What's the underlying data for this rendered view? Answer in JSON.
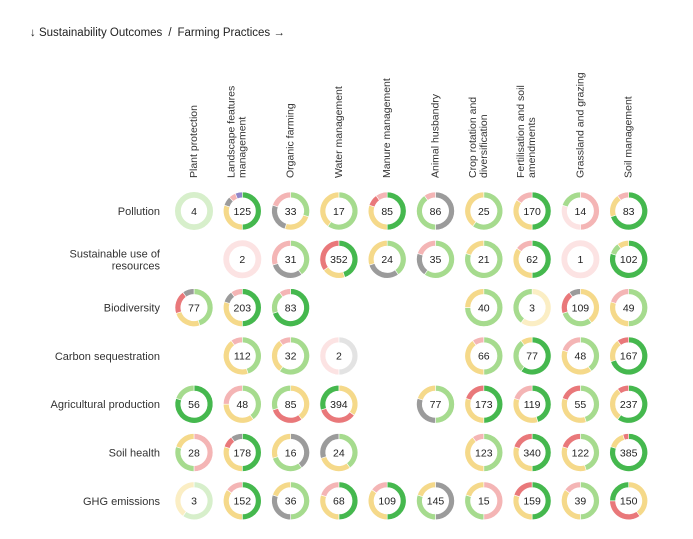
{
  "breadcrumb": {
    "outcomes_label": "↓ Sustainability Outcomes",
    "separator": "/",
    "practices_label": "Farming Practices →"
  },
  "palette": {
    "dark_green": "#45B84E",
    "light_green": "#A6DB8E",
    "yellow": "#F5D98A",
    "red": "#E9787A",
    "pink": "#F4B5B5",
    "grey": "#9B9B9B",
    "purple": "#8F86C9",
    "pale_green": "#D7EFCB",
    "pale_pink": "#FCE3E3",
    "pale_grey": "#E3E3E3",
    "pale_yellow": "#FBEEC4"
  },
  "chart_data": {
    "type": "matrix",
    "columns": [
      [
        "Plant protection"
      ],
      [
        "Landscape features",
        "management"
      ],
      [
        "Organic farming"
      ],
      [
        "Water management"
      ],
      [
        "Manure management"
      ],
      [
        "Animal husbandry"
      ],
      [
        "Crop rotation and",
        "diversification"
      ],
      [
        "Fertilisation and soil",
        "amendments"
      ],
      [
        "Grassland and grazing"
      ],
      [
        "Soil management"
      ]
    ],
    "rows": [
      [
        "Pollution"
      ],
      [
        "Sustainable use of",
        "resources"
      ],
      [
        "Biodiversity"
      ],
      [
        "Carbon sequestration"
      ],
      [
        "Agricultural production"
      ],
      [
        "Soil health"
      ],
      [
        "GHG emissions"
      ]
    ],
    "cells": [
      [
        {
          "v": 4,
          "s": [
            [
              "pale_green",
              1
            ]
          ]
        },
        {
          "v": 125,
          "s": [
            [
              "dark_green",
              0.5
            ],
            [
              "yellow",
              0.3
            ],
            [
              "grey",
              0.08
            ],
            [
              "pink",
              0.06
            ],
            [
              "purple",
              0.06
            ]
          ]
        },
        {
          "v": 33,
          "s": [
            [
              "light_green",
              0.3
            ],
            [
              "yellow",
              0.25
            ],
            [
              "grey",
              0.25
            ],
            [
              "pink",
              0.2
            ]
          ]
        },
        {
          "v": 17,
          "s": [
            [
              "light_green",
              0.6
            ],
            [
              "yellow",
              0.4
            ]
          ]
        },
        {
          "v": 85,
          "s": [
            [
              "dark_green",
              0.5
            ],
            [
              "yellow",
              0.3
            ],
            [
              "red",
              0.1
            ],
            [
              "pink",
              0.1
            ]
          ]
        },
        {
          "v": 86,
          "s": [
            [
              "grey",
              0.5
            ],
            [
              "light_green",
              0.4
            ],
            [
              "pink",
              0.1
            ]
          ]
        },
        {
          "v": 25,
          "s": [
            [
              "light_green",
              0.6
            ],
            [
              "yellow",
              0.4
            ]
          ]
        },
        {
          "v": 170,
          "s": [
            [
              "dark_green",
              0.5
            ],
            [
              "yellow",
              0.35
            ],
            [
              "pink",
              0.15
            ]
          ]
        },
        {
          "v": 14,
          "s": [
            [
              "pink",
              0.5
            ],
            [
              "pale_pink",
              0.3
            ],
            [
              "light_green",
              0.2
            ]
          ]
        },
        {
          "v": 83,
          "s": [
            [
              "dark_green",
              0.7
            ],
            [
              "yellow",
              0.2
            ],
            [
              "pink",
              0.1
            ]
          ]
        }
      ],
      [
        null,
        {
          "v": 2,
          "s": [
            [
              "pale_pink",
              1
            ]
          ]
        },
        {
          "v": 31,
          "s": [
            [
              "light_green",
              0.4
            ],
            [
              "grey",
              0.3
            ],
            [
              "pink",
              0.3
            ]
          ]
        },
        {
          "v": 352,
          "s": [
            [
              "dark_green",
              0.45
            ],
            [
              "yellow",
              0.2
            ],
            [
              "red",
              0.35
            ]
          ]
        },
        {
          "v": 24,
          "s": [
            [
              "light_green",
              0.4
            ],
            [
              "grey",
              0.3
            ],
            [
              "yellow",
              0.3
            ]
          ]
        },
        {
          "v": 35,
          "s": [
            [
              "light_green",
              0.6
            ],
            [
              "grey",
              0.2
            ],
            [
              "pink",
              0.2
            ]
          ]
        },
        {
          "v": 21,
          "s": [
            [
              "light_green",
              0.8
            ],
            [
              "yellow",
              0.2
            ]
          ]
        },
        {
          "v": 62,
          "s": [
            [
              "dark_green",
              0.5
            ],
            [
              "yellow",
              0.35
            ],
            [
              "pink",
              0.15
            ]
          ]
        },
        {
          "v": 1,
          "s": [
            [
              "pale_pink",
              1
            ]
          ]
        },
        {
          "v": 102,
          "s": [
            [
              "dark_green",
              0.8
            ],
            [
              "light_green",
              0.1
            ],
            [
              "yellow",
              0.1
            ]
          ]
        }
      ],
      [
        {
          "v": 77,
          "s": [
            [
              "light_green",
              0.45
            ],
            [
              "yellow",
              0.25
            ],
            [
              "red",
              0.2
            ],
            [
              "grey",
              0.1
            ]
          ]
        },
        {
          "v": 203,
          "s": [
            [
              "dark_green",
              0.5
            ],
            [
              "yellow",
              0.3
            ],
            [
              "grey",
              0.1
            ],
            [
              "pink",
              0.1
            ]
          ]
        },
        {
          "v": 83,
          "s": [
            [
              "dark_green",
              0.7
            ],
            [
              "light_green",
              0.2
            ],
            [
              "pink",
              0.1
            ]
          ]
        },
        null,
        null,
        null,
        {
          "v": 40,
          "s": [
            [
              "light_green",
              0.75
            ],
            [
              "yellow",
              0.25
            ]
          ]
        },
        {
          "v": 3,
          "s": [
            [
              "pale_yellow",
              0.6
            ],
            [
              "light_green",
              0.4
            ]
          ]
        },
        {
          "v": 109,
          "s": [
            [
              "yellow",
              0.4
            ],
            [
              "light_green",
              0.3
            ],
            [
              "red",
              0.2
            ],
            [
              "grey",
              0.1
            ]
          ]
        },
        {
          "v": 49,
          "s": [
            [
              "light_green",
              0.5
            ],
            [
              "yellow",
              0.3
            ],
            [
              "pink",
              0.2
            ]
          ]
        }
      ],
      [
        null,
        {
          "v": 112,
          "s": [
            [
              "light_green",
              0.45
            ],
            [
              "yellow",
              0.45
            ],
            [
              "pink",
              0.1
            ]
          ]
        },
        {
          "v": 32,
          "s": [
            [
              "light_green",
              0.6
            ],
            [
              "yellow",
              0.3
            ],
            [
              "pink",
              0.1
            ]
          ]
        },
        {
          "v": 2,
          "s": [
            [
              "pale_grey",
              0.5
            ],
            [
              "pale_pink",
              0.5
            ]
          ]
        },
        null,
        null,
        {
          "v": 66,
          "s": [
            [
              "light_green",
              0.5
            ],
            [
              "yellow",
              0.4
            ],
            [
              "pink",
              0.1
            ]
          ]
        },
        {
          "v": 77,
          "s": [
            [
              "dark_green",
              0.6
            ],
            [
              "light_green",
              0.3
            ],
            [
              "yellow",
              0.1
            ]
          ]
        },
        {
          "v": 48,
          "s": [
            [
              "light_green",
              0.4
            ],
            [
              "yellow",
              0.4
            ],
            [
              "pink",
              0.2
            ]
          ]
        },
        {
          "v": 167,
          "s": [
            [
              "dark_green",
              0.7
            ],
            [
              "yellow",
              0.2
            ],
            [
              "red",
              0.1
            ]
          ]
        }
      ],
      [
        {
          "v": 56,
          "s": [
            [
              "dark_green",
              0.8
            ],
            [
              "light_green",
              0.2
            ]
          ]
        },
        {
          "v": 48,
          "s": [
            [
              "light_green",
              0.4
            ],
            [
              "yellow",
              0.35
            ],
            [
              "pink",
              0.25
            ]
          ]
        },
        {
          "v": 85,
          "s": [
            [
              "yellow",
              0.4
            ],
            [
              "red",
              0.3
            ],
            [
              "light_green",
              0.3
            ]
          ]
        },
        {
          "v": 394,
          "s": [
            [
              "yellow",
              0.35
            ],
            [
              "red",
              0.35
            ],
            [
              "dark_green",
              0.3
            ]
          ]
        },
        null,
        {
          "v": 77,
          "s": [
            [
              "light_green",
              0.5
            ],
            [
              "grey",
              0.3
            ],
            [
              "yellow",
              0.2
            ]
          ]
        },
        {
          "v": 173,
          "s": [
            [
              "dark_green",
              0.5
            ],
            [
              "yellow",
              0.3
            ],
            [
              "red",
              0.2
            ]
          ]
        },
        {
          "v": 119,
          "s": [
            [
              "dark_green",
              0.45
            ],
            [
              "yellow",
              0.35
            ],
            [
              "pink",
              0.2
            ]
          ]
        },
        {
          "v": 55,
          "s": [
            [
              "light_green",
              0.45
            ],
            [
              "yellow",
              0.35
            ],
            [
              "red",
              0.2
            ]
          ]
        },
        {
          "v": 237,
          "s": [
            [
              "dark_green",
              0.6
            ],
            [
              "yellow",
              0.3
            ],
            [
              "red",
              0.1
            ]
          ]
        }
      ],
      [
        {
          "v": 28,
          "s": [
            [
              "pink",
              0.5
            ],
            [
              "light_green",
              0.3
            ],
            [
              "yellow",
              0.2
            ]
          ]
        },
        {
          "v": 178,
          "s": [
            [
              "dark_green",
              0.5
            ],
            [
              "yellow",
              0.3
            ],
            [
              "red",
              0.1
            ],
            [
              "grey",
              0.1
            ]
          ]
        },
        {
          "v": 16,
          "s": [
            [
              "grey",
              0.4
            ],
            [
              "light_green",
              0.3
            ],
            [
              "yellow",
              0.3
            ]
          ]
        },
        {
          "v": 24,
          "s": [
            [
              "light_green",
              0.4
            ],
            [
              "yellow",
              0.3
            ],
            [
              "grey",
              0.3
            ]
          ]
        },
        null,
        null,
        {
          "v": 123,
          "s": [
            [
              "light_green",
              0.5
            ],
            [
              "yellow",
              0.4
            ],
            [
              "pink",
              0.1
            ]
          ]
        },
        {
          "v": 340,
          "s": [
            [
              "dark_green",
              0.5
            ],
            [
              "yellow",
              0.3
            ],
            [
              "red",
              0.2
            ]
          ]
        },
        {
          "v": 122,
          "s": [
            [
              "light_green",
              0.45
            ],
            [
              "yellow",
              0.35
            ],
            [
              "red",
              0.2
            ]
          ]
        },
        {
          "v": 385,
          "s": [
            [
              "dark_green",
              0.8
            ],
            [
              "yellow",
              0.15
            ],
            [
              "red",
              0.05
            ]
          ]
        }
      ],
      [
        {
          "v": 3,
          "s": [
            [
              "pale_green",
              0.6
            ],
            [
              "pale_yellow",
              0.4
            ]
          ]
        },
        {
          "v": 152,
          "s": [
            [
              "dark_green",
              0.5
            ],
            [
              "yellow",
              0.35
            ],
            [
              "pink",
              0.15
            ]
          ]
        },
        {
          "v": 36,
          "s": [
            [
              "light_green",
              0.5
            ],
            [
              "grey",
              0.3
            ],
            [
              "yellow",
              0.2
            ]
          ]
        },
        {
          "v": 68,
          "s": [
            [
              "dark_green",
              0.5
            ],
            [
              "yellow",
              0.3
            ],
            [
              "pink",
              0.2
            ]
          ]
        },
        {
          "v": 109,
          "s": [
            [
              "dark_green",
              0.5
            ],
            [
              "yellow",
              0.35
            ],
            [
              "pink",
              0.15
            ]
          ]
        },
        {
          "v": 145,
          "s": [
            [
              "grey",
              0.5
            ],
            [
              "light_green",
              0.3
            ],
            [
              "yellow",
              0.2
            ]
          ]
        },
        {
          "v": 15,
          "s": [
            [
              "pink",
              0.5
            ],
            [
              "light_green",
              0.3
            ],
            [
              "yellow",
              0.2
            ]
          ]
        },
        {
          "v": 159,
          "s": [
            [
              "dark_green",
              0.5
            ],
            [
              "yellow",
              0.3
            ],
            [
              "red",
              0.2
            ]
          ]
        },
        {
          "v": 39,
          "s": [
            [
              "light_green",
              0.5
            ],
            [
              "yellow",
              0.35
            ],
            [
              "pink",
              0.15
            ]
          ]
        },
        {
          "v": 150,
          "s": [
            [
              "yellow",
              0.4
            ],
            [
              "red",
              0.35
            ],
            [
              "dark_green",
              0.25
            ]
          ]
        }
      ]
    ]
  }
}
